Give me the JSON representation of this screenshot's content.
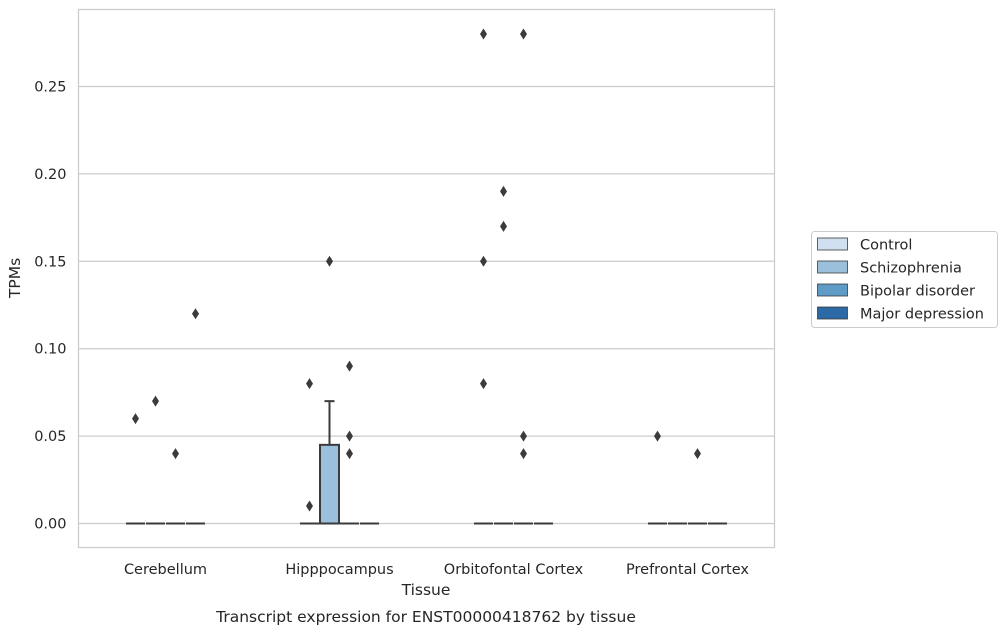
{
  "chart_data": {
    "type": "box",
    "title": "",
    "caption": "Transcript expression for ENST00000418762 by tissue",
    "xlabel": "Tissue",
    "ylabel": "TPMs",
    "ylim": [
      -0.014,
      0.293
    ],
    "yticks": [
      "0.00",
      "0.05",
      "0.10",
      "0.15",
      "0.20",
      "0.25"
    ],
    "grid": "horizontal",
    "legend_position": "right",
    "categories": [
      "Cerebellum",
      "Hipppocampus",
      "Orbitofontal Cortex",
      "Prefrontal Cortex"
    ],
    "series": [
      {
        "name": "Control",
        "color": "#d0e0f0"
      },
      {
        "name": "Schizophrenia",
        "color": "#9ac0db"
      },
      {
        "name": "Bipolar disorder",
        "color": "#5e9bc7"
      },
      {
        "name": "Major depression",
        "color": "#2b6aa6"
      }
    ],
    "boxes": [
      {
        "category": 0,
        "series": 0,
        "q1": 0,
        "median": 0,
        "q3": 0,
        "whisker_low": 0,
        "whisker_high": 0,
        "outliers": [
          0.06
        ]
      },
      {
        "category": 0,
        "series": 1,
        "q1": 0,
        "median": 0,
        "q3": 0,
        "whisker_low": 0,
        "whisker_high": 0,
        "outliers": [
          0.07
        ]
      },
      {
        "category": 0,
        "series": 2,
        "q1": 0,
        "median": 0,
        "q3": 0,
        "whisker_low": 0,
        "whisker_high": 0,
        "outliers": [
          0.04
        ]
      },
      {
        "category": 0,
        "series": 3,
        "q1": 0,
        "median": 0,
        "q3": 0,
        "whisker_low": 0,
        "whisker_high": 0,
        "outliers": [
          0.12
        ]
      },
      {
        "category": 1,
        "series": 0,
        "q1": 0,
        "median": 0,
        "q3": 0,
        "whisker_low": 0,
        "whisker_high": 0,
        "outliers": [
          0.08,
          0.01
        ]
      },
      {
        "category": 1,
        "series": 1,
        "q1": 0,
        "median": 0,
        "q3": 0.045,
        "whisker_low": 0,
        "whisker_high": 0.07,
        "outliers": [
          0.15
        ]
      },
      {
        "category": 1,
        "series": 2,
        "q1": 0,
        "median": 0,
        "q3": 0,
        "whisker_low": 0,
        "whisker_high": 0,
        "outliers": [
          0.09,
          0.05,
          0.04
        ]
      },
      {
        "category": 1,
        "series": 3,
        "q1": 0,
        "median": 0,
        "q3": 0,
        "whisker_low": 0,
        "whisker_high": 0,
        "outliers": []
      },
      {
        "category": 2,
        "series": 0,
        "q1": 0,
        "median": 0,
        "q3": 0,
        "whisker_low": 0,
        "whisker_high": 0,
        "outliers": [
          0.28,
          0.15,
          0.08
        ]
      },
      {
        "category": 2,
        "series": 1,
        "q1": 0,
        "median": 0,
        "q3": 0,
        "whisker_low": 0,
        "whisker_high": 0,
        "outliers": [
          0.19,
          0.17
        ]
      },
      {
        "category": 2,
        "series": 2,
        "q1": 0,
        "median": 0,
        "q3": 0,
        "whisker_low": 0,
        "whisker_high": 0,
        "outliers": [
          0.28,
          0.05,
          0.04
        ]
      },
      {
        "category": 2,
        "series": 3,
        "q1": 0,
        "median": 0,
        "q3": 0,
        "whisker_low": 0,
        "whisker_high": 0,
        "outliers": []
      },
      {
        "category": 3,
        "series": 0,
        "q1": 0,
        "median": 0,
        "q3": 0,
        "whisker_low": 0,
        "whisker_high": 0,
        "outliers": [
          0.05
        ]
      },
      {
        "category": 3,
        "series": 1,
        "q1": 0,
        "median": 0,
        "q3": 0,
        "whisker_low": 0,
        "whisker_high": 0,
        "outliers": []
      },
      {
        "category": 3,
        "series": 2,
        "q1": 0,
        "median": 0,
        "q3": 0,
        "whisker_low": 0,
        "whisker_high": 0,
        "outliers": [
          0.04
        ]
      },
      {
        "category": 3,
        "series": 3,
        "q1": 0,
        "median": 0,
        "q3": 0,
        "whisker_low": 0,
        "whisker_high": 0,
        "outliers": []
      }
    ]
  }
}
